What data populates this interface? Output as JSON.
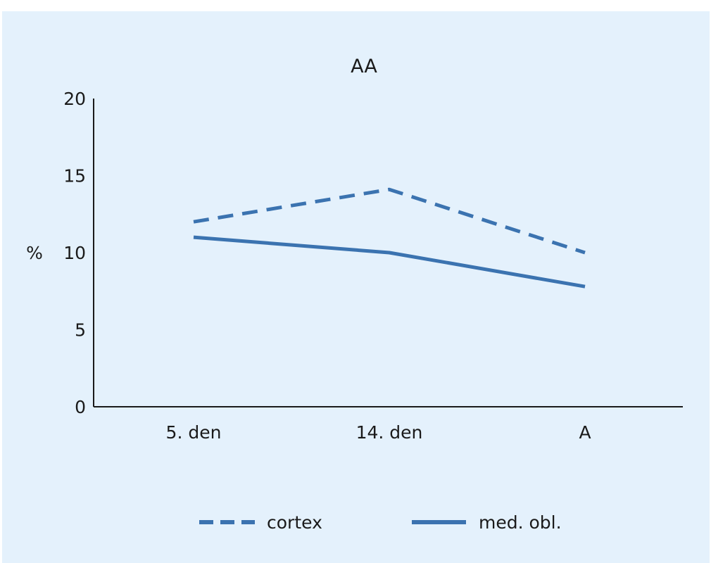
{
  "chart_data": {
    "type": "line",
    "title": "AA",
    "xlabel": "",
    "ylabel": "%",
    "categories": [
      "5. den",
      "14. den",
      "A"
    ],
    "ylim": [
      0,
      20
    ],
    "yticks": [
      0,
      5,
      10,
      15,
      20
    ],
    "grid": false,
    "legend_position": "bottom",
    "series": [
      {
        "name": "cortex",
        "values": [
          12,
          14.1,
          10
        ],
        "style": "dashed",
        "color": "#3b73b0"
      },
      {
        "name": "med. obl.",
        "values": [
          11,
          10,
          7.8
        ],
        "style": "solid",
        "color": "#3b73b0"
      }
    ]
  }
}
